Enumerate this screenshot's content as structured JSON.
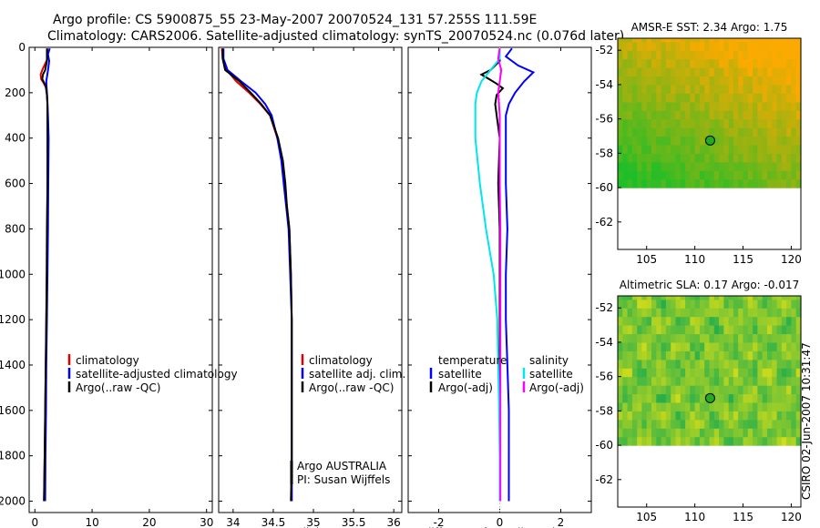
{
  "title": {
    "line1": "Argo profile: CS 5900875_55 23-May-2007 20070524_131 57.255S 111.59E",
    "line2": "Climatology: CARS2006. Satellite-adjusted climatology: synTS_20070524.nc (0.076d later)"
  },
  "side_label": "CSIRO 02-Jun-2007 10:31:47",
  "colors": {
    "climatology": "#e00000",
    "satellite": "#0000ff",
    "argo": "#000000",
    "salinity_satellite": "#00e5ee",
    "salinity_argo": "#ff00ff",
    "map_land_white": "#ffffff",
    "float_marker": "#22aa22"
  },
  "chart_data": [
    {
      "type": "line",
      "name": "temperature-profile",
      "xlabel": "temperature",
      "ylabel": "",
      "xlim": [
        -1,
        31
      ],
      "ylim": [
        2050,
        0
      ],
      "xticks": [
        0,
        10,
        20,
        30
      ],
      "xtick_labels": [
        "0",
        "10",
        "20",
        "30"
      ],
      "yticks": [
        0,
        200,
        400,
        600,
        800,
        1000,
        1200,
        1400,
        1600,
        1800,
        2000
      ],
      "ytick_labels": [
        "0",
        "200",
        "400",
        "600",
        "800",
        "1000",
        "1200",
        "1400",
        "1600",
        "1800",
        "2000"
      ],
      "legend": [
        {
          "label": "climatology",
          "color_key": "climatology"
        },
        {
          "label": "satellite-adjusted climatology",
          "color_key": "satellite"
        },
        {
          "label": "Argo(..raw -QC)",
          "color_key": "argo"
        }
      ],
      "series": [
        {
          "name": "climatology",
          "color_key": "climatology",
          "depth": [
            5,
            50,
            100,
            120,
            140,
            160,
            180,
            200,
            250,
            300,
            400,
            600,
            800,
            1000,
            1200,
            1400,
            1600,
            1800,
            2000
          ],
          "values": [
            2.2,
            2.2,
            1.3,
            1.0,
            1.1,
            1.6,
            2.0,
            2.1,
            2.2,
            2.2,
            2.25,
            2.2,
            2.15,
            2.1,
            2.0,
            1.9,
            1.8,
            1.7,
            1.6
          ]
        },
        {
          "name": "satellite-adjusted climatology",
          "color_key": "satellite",
          "depth": [
            5,
            30,
            60,
            100,
            150,
            200,
            250,
            300,
            400,
            600,
            800,
            1000,
            1200,
            1400,
            1600,
            1800,
            2000
          ],
          "values": [
            2.6,
            2.3,
            2.5,
            2.3,
            2.0,
            2.1,
            2.2,
            2.3,
            2.4,
            2.35,
            2.3,
            2.2,
            2.1,
            2.0,
            1.95,
            1.85,
            1.8
          ]
        },
        {
          "name": "Argo(..raw -QC)",
          "color_key": "argo",
          "depth": [
            5,
            60,
            100,
            120,
            140,
            150,
            170,
            190,
            210,
            250,
            300,
            400,
            600,
            800,
            1000,
            1200,
            1400,
            1600,
            1800,
            2000
          ],
          "values": [
            2.1,
            2.1,
            1.8,
            1.4,
            1.3,
            1.5,
            1.9,
            2.0,
            2.1,
            2.2,
            2.2,
            2.2,
            2.2,
            2.1,
            2.05,
            2.0,
            1.9,
            1.8,
            1.7,
            1.6
          ]
        }
      ]
    },
    {
      "type": "line",
      "name": "salinity-profile",
      "xlabel": "salinity",
      "xlim": [
        33.82,
        36.1
      ],
      "ylim": [
        2050,
        0
      ],
      "xticks": [
        34,
        34.5,
        35,
        35.5,
        36
      ],
      "xtick_labels": [
        "34",
        "34.5",
        "35",
        "35.5",
        "36"
      ],
      "legend": [
        {
          "label": "climatology",
          "color_key": "climatology"
        },
        {
          "label": "satellite adj. clim.",
          "color_key": "satellite"
        },
        {
          "label": "Argo(..raw -QC)",
          "color_key": "argo"
        }
      ],
      "annotation": [
        "Argo AUSTRALIA",
        "PI: Susan Wijffels"
      ],
      "series": [
        {
          "name": "climatology",
          "color_key": "climatology",
          "depth": [
            5,
            50,
            100,
            150,
            200,
            250,
            300,
            400,
            500,
            600,
            700,
            800,
            1000,
            1200,
            1400,
            1600,
            1800,
            2000
          ],
          "values": [
            33.86,
            33.87,
            33.92,
            34.04,
            34.2,
            34.34,
            34.46,
            34.55,
            34.61,
            34.64,
            34.67,
            34.7,
            34.72,
            34.73,
            34.73,
            34.73,
            34.73,
            34.73
          ]
        },
        {
          "name": "satellite adj. clim.",
          "color_key": "satellite",
          "depth": [
            5,
            50,
            100,
            150,
            200,
            250,
            300,
            400,
            500,
            600,
            700,
            800,
            1000,
            1200,
            1400,
            1600,
            1800,
            2000
          ],
          "values": [
            33.88,
            33.88,
            33.93,
            34.1,
            34.28,
            34.4,
            34.48,
            34.55,
            34.6,
            34.63,
            34.66,
            34.69,
            34.71,
            34.73,
            34.73,
            34.73,
            34.73,
            34.73
          ]
        },
        {
          "name": "Argo(..raw -QC)",
          "color_key": "argo",
          "depth": [
            5,
            50,
            100,
            150,
            200,
            250,
            300,
            400,
            500,
            600,
            700,
            800,
            1000,
            1200,
            1400,
            1600,
            1800,
            2000
          ],
          "values": [
            33.87,
            33.87,
            33.9,
            34.08,
            34.22,
            34.35,
            34.46,
            34.56,
            34.62,
            34.65,
            34.67,
            34.7,
            34.72,
            34.73,
            34.73,
            34.73,
            34.73,
            34.72
          ]
        }
      ]
    },
    {
      "type": "line",
      "name": "difference-profile",
      "xlabel": "difference from climatology",
      "xlim": [
        -3.0,
        3.0
      ],
      "ylim": [
        2050,
        0
      ],
      "xticks": [
        -2,
        0,
        2
      ],
      "xtick_labels": [
        "-2",
        "0",
        "2"
      ],
      "legend_left_title": "temperature",
      "legend_right_title": "salinity",
      "legend_left": [
        {
          "label": "satellite",
          "color_key": "satellite"
        },
        {
          "label": "Argo(-adj)",
          "color_key": "argo"
        }
      ],
      "legend_right": [
        {
          "label": "satellite",
          "color_key": "salinity_satellite"
        },
        {
          "label": "Argo(-adj)",
          "color_key": "salinity_argo"
        }
      ],
      "series": [
        {
          "name": "temperature satellite",
          "color_key": "satellite",
          "depth": [
            5,
            40,
            80,
            110,
            150,
            200,
            250,
            300,
            400,
            600,
            800,
            1000,
            1200,
            1400,
            1600,
            1800,
            2000
          ],
          "values": [
            0.4,
            0.2,
            0.6,
            1.1,
            0.8,
            0.5,
            0.3,
            0.2,
            0.2,
            0.2,
            0.25,
            0.2,
            0.2,
            0.25,
            0.3,
            0.3,
            0.3
          ]
        },
        {
          "name": "temperature Argo(-adj)",
          "color_key": "argo",
          "depth": [
            5,
            60,
            100,
            120,
            140,
            160,
            180,
            210,
            250,
            300,
            400,
            600,
            800,
            1000,
            1200,
            1400,
            1600,
            1800,
            2000
          ],
          "values": [
            0.0,
            0.0,
            -0.3,
            -0.6,
            -0.35,
            -0.1,
            0.1,
            -0.1,
            -0.15,
            -0.1,
            0.0,
            -0.05,
            0.0,
            0.0,
            0.0,
            0.0,
            0.0,
            0.0,
            0.0
          ]
        },
        {
          "name": "salinity satellite",
          "color_key": "salinity_satellite",
          "depth": [
            5,
            50,
            100,
            150,
            200,
            250,
            400,
            600,
            800,
            1000,
            1200,
            1400,
            1600,
            1800,
            2000
          ],
          "values": [
            0.0,
            0.0,
            -0.3,
            -0.6,
            -0.75,
            -0.8,
            -0.8,
            -0.65,
            -0.45,
            -0.2,
            -0.08,
            -0.05,
            -0.02,
            0.0,
            0.0
          ]
        },
        {
          "name": "salinity Argo(-adj)",
          "color_key": "salinity_argo",
          "depth": [
            5,
            50,
            100,
            150,
            200,
            300,
            400,
            600,
            800,
            1000,
            1200,
            1400,
            1600,
            1800,
            2000
          ],
          "values": [
            0.0,
            -0.05,
            0.05,
            0.0,
            -0.05,
            0.0,
            0.0,
            0.0,
            0.02,
            0.02,
            0.02,
            0.02,
            0.02,
            0.02,
            0.02
          ]
        }
      ]
    },
    {
      "type": "heatmap",
      "name": "amsre-sst-map",
      "title": "AMSR-E SST: 2.34 Argo: 1.75",
      "xlim": [
        102,
        121
      ],
      "ylim": [
        -63.6,
        -51.3
      ],
      "xticks": [
        105,
        110,
        115,
        120
      ],
      "xtick_labels": [
        "105",
        "110",
        "115",
        "120"
      ],
      "yticks": [
        -52,
        -54,
        -56,
        -58,
        -60,
        -62
      ],
      "ytick_labels": [
        "-52",
        "-54",
        "-56",
        "-58",
        "-60",
        "-62"
      ],
      "data_extent_south": -60,
      "float_position": {
        "lon": 111.59,
        "lat": -57.255
      }
    },
    {
      "type": "heatmap",
      "name": "altimetric-sla-map",
      "title": "Altimetric SLA: 0.17 Argo: -0.017",
      "xlim": [
        102,
        121
      ],
      "ylim": [
        -63.6,
        -51.3
      ],
      "xticks": [
        105,
        110,
        115,
        120
      ],
      "xtick_labels": [
        "105",
        "110",
        "115",
        "120"
      ],
      "yticks": [
        -52,
        -54,
        -56,
        -58,
        -60,
        -62
      ],
      "ytick_labels": [
        "-52",
        "-54",
        "-56",
        "-58",
        "-60",
        "-62"
      ],
      "data_extent_south": -60,
      "float_position": {
        "lon": 111.59,
        "lat": -57.255
      }
    }
  ]
}
